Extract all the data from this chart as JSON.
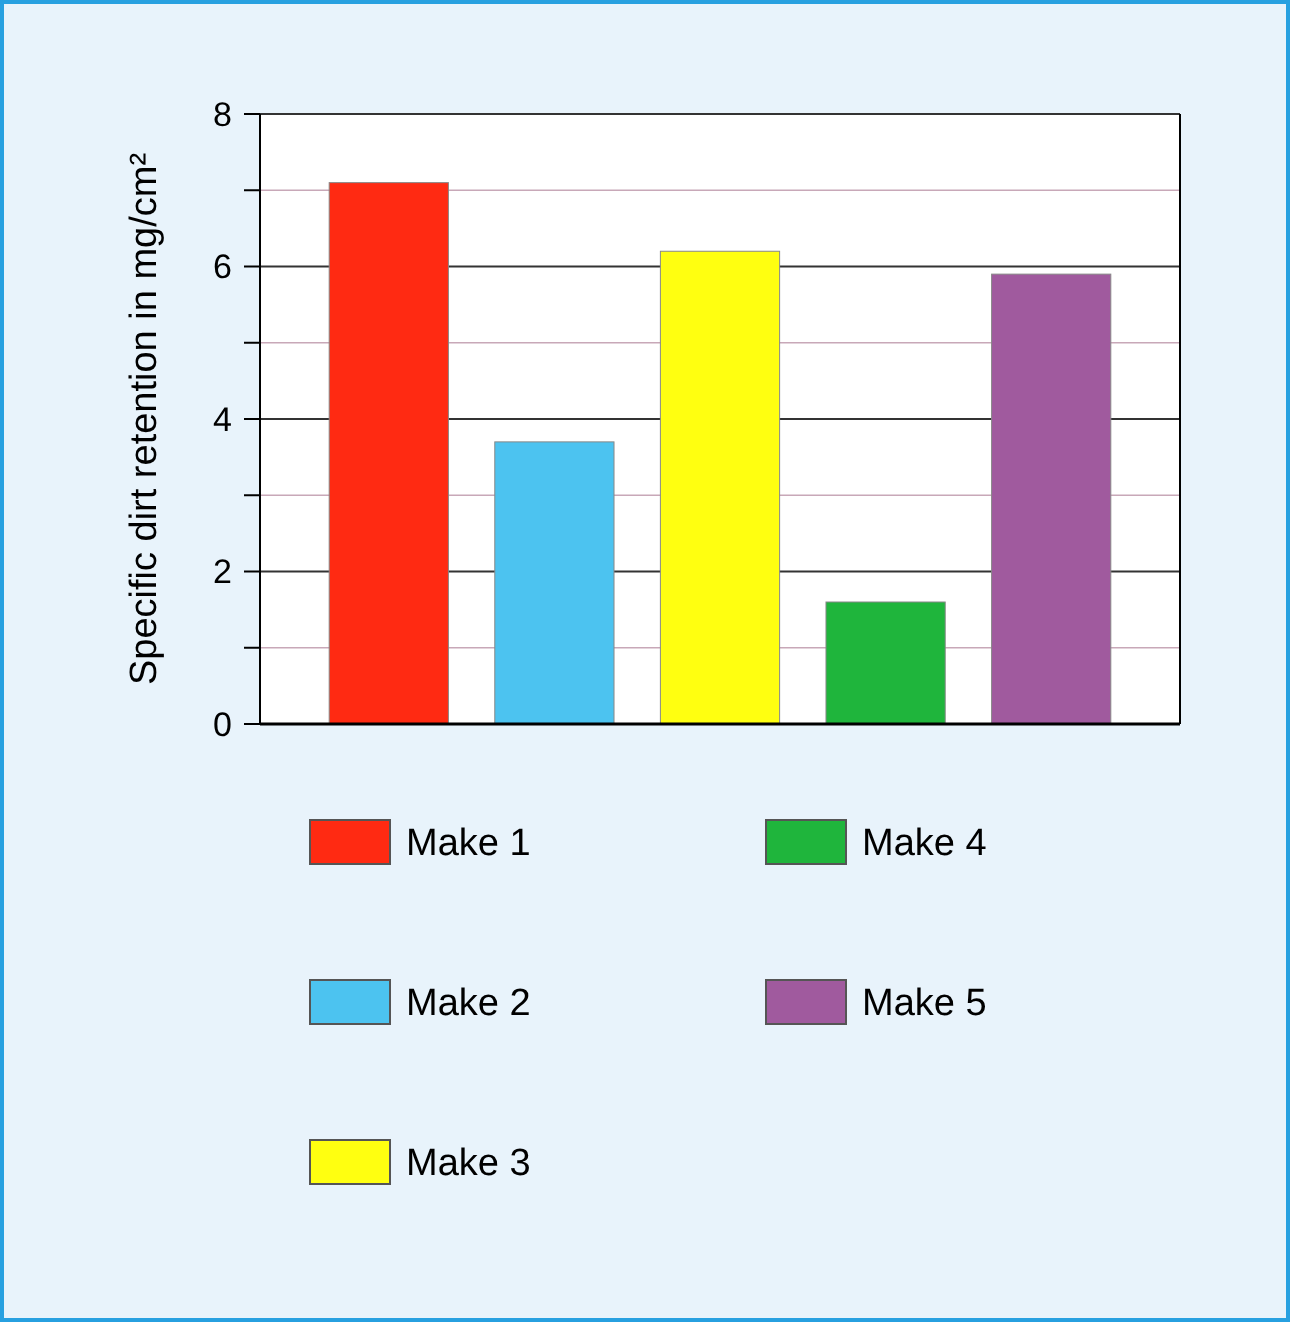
{
  "chart_data": {
    "type": "bar",
    "ylabel": "Specific dirt retention in mg/cm²",
    "categories": [
      null
    ],
    "series": [
      {
        "name": "Make 1",
        "color": "#ff2a12",
        "values": [
          7.1
        ]
      },
      {
        "name": "Make 2",
        "color": "#4cc3f0",
        "values": [
          3.7
        ]
      },
      {
        "name": "Make 3",
        "color": "#ffff10",
        "values": [
          6.2
        ]
      },
      {
        "name": "Make 4",
        "color": "#1fb53c",
        "values": [
          1.6
        ]
      },
      {
        "name": "Make 5",
        "color": "#a05a9e",
        "values": [
          5.9
        ]
      }
    ],
    "ylim": [
      0,
      8
    ],
    "yticks": [
      0,
      {
        "value": 1,
        "label": null
      },
      2,
      {
        "value": 3,
        "label": null
      },
      4,
      {
        "value": 5,
        "label": null
      },
      6,
      {
        "value": 7,
        "label": null
      },
      8
    ],
    "grid": true,
    "legend": "bottom",
    "tick_labels": "y"
  }
}
